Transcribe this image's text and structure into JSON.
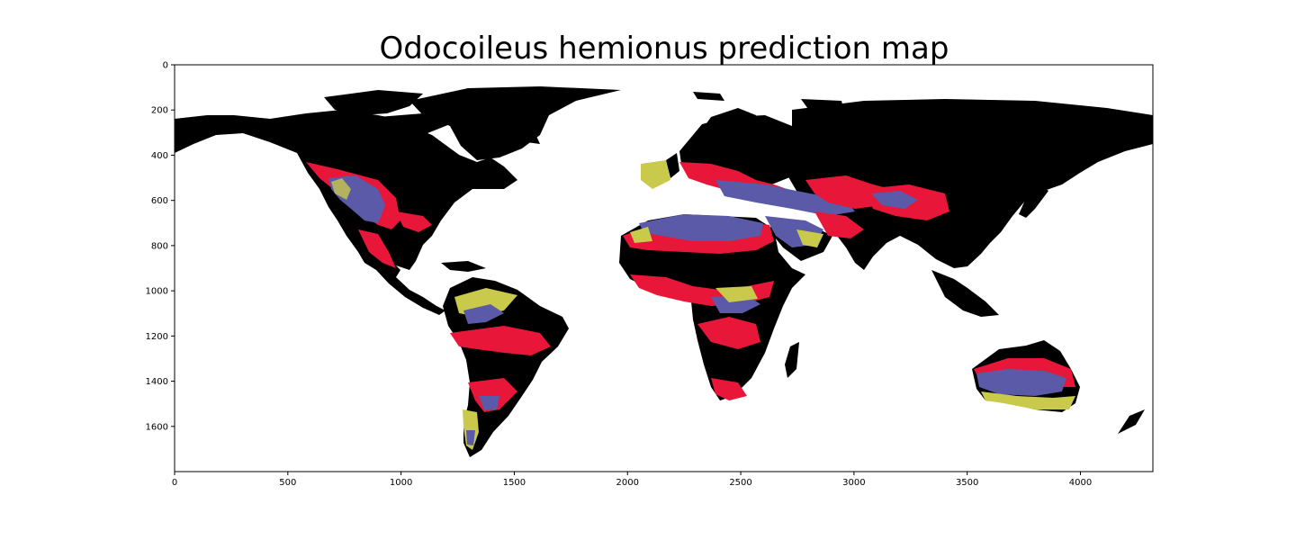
{
  "title": "Odocoileus hemionus prediction map",
  "map": {
    "type": "raster-image",
    "colors": {
      "land_low": "#000000",
      "high": "#e8173a",
      "very_high": "#5a5aa8",
      "edge": "#c9c94c",
      "background": "#ffffff"
    },
    "regions": [
      "North America",
      "South America",
      "Europe",
      "Africa",
      "Asia",
      "Australia",
      "Greenland",
      "Arctic islands"
    ]
  },
  "axes": {
    "x": {
      "range": [
        0,
        4320
      ],
      "ticks": [
        0,
        500,
        1000,
        1500,
        2000,
        2500,
        3000,
        3500,
        4000
      ]
    },
    "y": {
      "range": [
        0,
        1800
      ],
      "inverted": true,
      "ticks": [
        0,
        200,
        400,
        600,
        800,
        1000,
        1200,
        1400,
        1600
      ]
    }
  }
}
